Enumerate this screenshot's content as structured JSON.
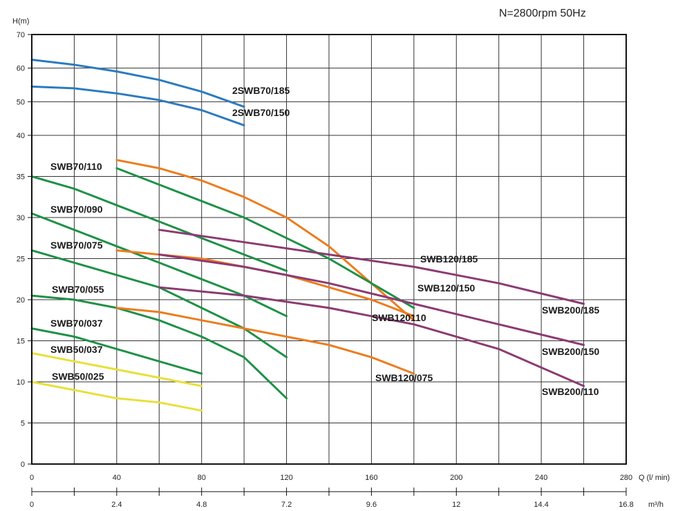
{
  "chart_data": {
    "type": "line",
    "header": "N=2800rpm    50Hz",
    "ylabel": "H(m)",
    "xlabel": "Q (l/ min)",
    "x2label": "m³/h",
    "xlim": [
      0,
      280
    ],
    "ylim": [
      0,
      70
    ],
    "yticks": [
      "0",
      "5",
      "10",
      "15",
      "20",
      "25",
      "30",
      "35",
      "40",
      "50",
      "60",
      "70"
    ],
    "xticks": [
      "0",
      "40",
      "80",
      "120",
      "160",
      "200",
      "240",
      "280"
    ],
    "x2ticks": [
      "0",
      "2.4",
      "4.8",
      "7.2",
      "9.6",
      "12",
      "14.4",
      "16.8"
    ],
    "grid": true,
    "series": [
      {
        "name": "2SWB70/185",
        "color": "#2b7bbf",
        "x": [
          0,
          20,
          40,
          60,
          80,
          100
        ],
        "y": [
          62.5,
          61,
          59,
          56.5,
          53,
          48.5
        ]
      },
      {
        "name": "2SWB70/150",
        "color": "#2b7bbf",
        "x": [
          0,
          20,
          40,
          60,
          80,
          100
        ],
        "y": [
          54.5,
          54,
          52.5,
          50.5,
          47.5,
          43
        ]
      },
      {
        "name": "SWB70/110",
        "color": "#1e9146",
        "x": [
          0,
          20,
          40,
          60,
          80,
          100,
          120
        ],
        "y": [
          35,
          33.5,
          31.5,
          29.5,
          27.5,
          25.5,
          23.5
        ]
      },
      {
        "name": "SWB70/090",
        "color": "#1e9146",
        "x": [
          0,
          20,
          40,
          60,
          80,
          100,
          120
        ],
        "y": [
          30.5,
          28.5,
          26.5,
          24.5,
          22.5,
          20.5,
          18
        ]
      },
      {
        "name": "SWB70/075",
        "color": "#1e9146",
        "x": [
          0,
          20,
          40,
          60,
          80,
          100,
          120
        ],
        "y": [
          26,
          24.5,
          23,
          21.5,
          19,
          16.5,
          13
        ]
      },
      {
        "name": "SWB70/055",
        "color": "#1e9146",
        "x": [
          0,
          20,
          40,
          60,
          80,
          100,
          120
        ],
        "y": [
          20.5,
          20,
          19,
          17.5,
          15.5,
          13,
          8
        ]
      },
      {
        "name": "SWB70/037",
        "color": "#1e9146",
        "x": [
          0,
          20,
          40,
          60,
          80
        ],
        "y": [
          16.5,
          15.5,
          14,
          12.5,
          11
        ]
      },
      {
        "name": "SWB50/037",
        "color": "#e8e03a",
        "x": [
          0,
          20,
          40,
          60,
          80
        ],
        "y": [
          13.5,
          12.5,
          11.5,
          10.5,
          9.5
        ]
      },
      {
        "name": "SWB50/025",
        "color": "#e8e03a",
        "x": [
          0,
          20,
          40,
          60,
          80
        ],
        "y": [
          10,
          9,
          8,
          7.5,
          6.5
        ]
      },
      {
        "name": "SWB120/185",
        "color": "#ec7c1e",
        "x": [
          40,
          60,
          80,
          100,
          120,
          140,
          160,
          180
        ],
        "y": [
          37,
          36,
          34.5,
          32.5,
          30,
          26.5,
          22,
          17.5
        ]
      },
      {
        "name": "SWB120/150",
        "color": "#1e9146",
        "x": [
          40,
          60,
          80,
          100,
          120,
          140,
          160,
          180
        ],
        "y": [
          36,
          34,
          32,
          30,
          27.5,
          25,
          22,
          19
        ]
      },
      {
        "name": "SWB120110",
        "color": "#ec7c1e",
        "x": [
          40,
          60,
          80,
          100,
          120,
          140,
          160,
          180
        ],
        "y": [
          26,
          25.5,
          25,
          24,
          23,
          21.5,
          20,
          18
        ]
      },
      {
        "name": "SWB120/075",
        "color": "#ec7c1e",
        "x": [
          40,
          60,
          80,
          100,
          120,
          140,
          160,
          180
        ],
        "y": [
          19,
          18.5,
          17.5,
          16.5,
          15.5,
          14.5,
          13,
          11
        ]
      },
      {
        "name": "SWB200/185",
        "color": "#8c3a72",
        "x": [
          60,
          100,
          140,
          180,
          220,
          260
        ],
        "y": [
          28.5,
          27,
          25.5,
          24,
          22,
          19.5
        ]
      },
      {
        "name": "SWB200/150",
        "color": "#8c3a72",
        "x": [
          60,
          100,
          140,
          180,
          220,
          260
        ],
        "y": [
          25.5,
          24,
          22,
          19.5,
          17,
          14.5
        ]
      },
      {
        "name": "SWB200/110",
        "color": "#8c3a72",
        "x": [
          60,
          100,
          140,
          180,
          220,
          260
        ],
        "y": [
          21.5,
          20.5,
          19,
          17,
          14,
          9.5
        ]
      }
    ],
    "labels": [
      {
        "text": "2SWB70/185"
      },
      {
        "text": "2SWB70/150"
      },
      {
        "text": "SWB70/110"
      },
      {
        "text": "SWB70/090"
      },
      {
        "text": "SWB70/075"
      },
      {
        "text": "SWB70/055"
      },
      {
        "text": "SWB70/037"
      },
      {
        "text": "SWB50/037"
      },
      {
        "text": "SWB50/025"
      },
      {
        "text": "SWB120/185"
      },
      {
        "text": "SWB120/150"
      },
      {
        "text": "SWB120110"
      },
      {
        "text": "SWB120/075"
      },
      {
        "text": "SWB200/185"
      },
      {
        "text": "SWB200/150"
      },
      {
        "text": "SWB200/110"
      }
    ]
  }
}
